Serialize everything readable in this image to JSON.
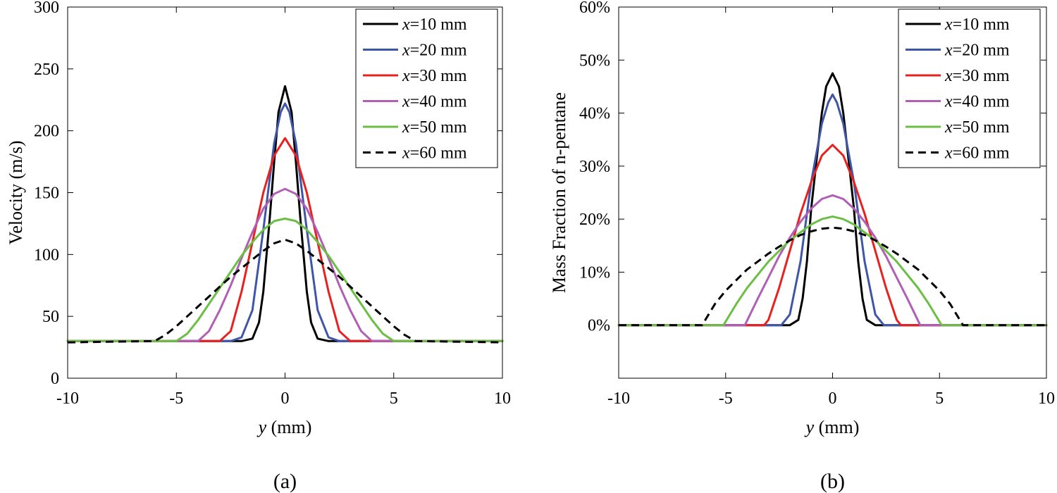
{
  "chart_data": [
    {
      "type": "line",
      "panel": "a",
      "caption": "(a)",
      "xlabel_var": "y",
      "xlabel_unit": " (mm)",
      "ylabel": "Velocity (m/s)",
      "xlim": [
        -10,
        10
      ],
      "ylim": [
        0,
        300
      ],
      "xticks": [
        -10,
        -5,
        0,
        5,
        10
      ],
      "xtick_labels": [
        "-10",
        "-5",
        "0",
        "5",
        "10"
      ],
      "yticks": [
        0,
        50,
        100,
        150,
        200,
        250,
        300
      ],
      "ytick_labels": [
        "0",
        "50",
        "100",
        "150",
        "200",
        "250",
        "300"
      ],
      "legend_position": "top-right",
      "series": [
        {
          "var": "x",
          "label": "=10 mm",
          "color": "#000000",
          "dash": "solid",
          "x": [
            -10,
            -2,
            -1.5,
            -1.2,
            -1,
            -0.7,
            -0.5,
            -0.3,
            0,
            0.3,
            0.5,
            0.7,
            1,
            1.2,
            1.5,
            2,
            10
          ],
          "y": [
            30,
            30,
            32,
            45,
            70,
            130,
            175,
            215,
            236,
            215,
            175,
            130,
            70,
            45,
            32,
            30,
            30
          ]
        },
        {
          "var": "x",
          "label": "=20 mm",
          "color": "#3f56a8",
          "dash": "solid",
          "x": [
            -10,
            -2.5,
            -2,
            -1.5,
            -1,
            -0.5,
            -0.2,
            0,
            0.2,
            0.5,
            1,
            1.5,
            2,
            2.5,
            10
          ],
          "y": [
            30,
            30,
            33,
            55,
            120,
            190,
            215,
            222,
            215,
            190,
            120,
            55,
            33,
            30,
            30
          ]
        },
        {
          "var": "x",
          "label": "=30 mm",
          "color": "#e8211f",
          "dash": "solid",
          "x": [
            -10,
            -3,
            -2.5,
            -2,
            -1.5,
            -1,
            -0.5,
            0,
            0.5,
            1,
            1.5,
            2,
            2.5,
            3,
            10
          ],
          "y": [
            30,
            30,
            38,
            70,
            110,
            150,
            180,
            194,
            180,
            150,
            110,
            70,
            38,
            30,
            30
          ]
        },
        {
          "var": "x",
          "label": "=40 mm",
          "color": "#b05fb5",
          "dash": "solid",
          "x": [
            -10,
            -4,
            -3.5,
            -3,
            -2.5,
            -2,
            -1.5,
            -1,
            -0.5,
            0,
            0.5,
            1,
            1.5,
            2,
            2.5,
            3,
            3.5,
            4,
            10
          ],
          "y": [
            30,
            30,
            38,
            55,
            75,
            97,
            118,
            137,
            149,
            153,
            149,
            137,
            118,
            97,
            75,
            55,
            38,
            30,
            30
          ]
        },
        {
          "var": "x",
          "label": "=50 mm",
          "color": "#6bbf45",
          "dash": "solid",
          "x": [
            -10,
            -5,
            -4.5,
            -4,
            -3.5,
            -3,
            -2.5,
            -2,
            -1.5,
            -1,
            -0.5,
            0,
            0.5,
            1,
            1.5,
            2,
            2.5,
            3,
            3.5,
            4,
            4.5,
            5,
            10
          ],
          "y": [
            30,
            30,
            36,
            47,
            60,
            73,
            86,
            99,
            110,
            120,
            127,
            129,
            127,
            120,
            110,
            99,
            86,
            73,
            60,
            47,
            36,
            30,
            30
          ]
        },
        {
          "var": "x",
          "label": "=60 mm",
          "color": "#000000",
          "dash": "dashed",
          "x": [
            -10,
            -6,
            -5.5,
            -5,
            -4.5,
            -4,
            -3.5,
            -3,
            -2.5,
            -2,
            -1.5,
            -1,
            -0.5,
            0,
            0.5,
            1,
            1.5,
            2,
            2.5,
            3,
            3.5,
            4,
            4.5,
            5,
            5.5,
            6,
            10
          ],
          "y": [
            29,
            30,
            35,
            42,
            50,
            58,
            66,
            74,
            82,
            89,
            96,
            103,
            109,
            112,
            109,
            103,
            96,
            89,
            82,
            74,
            66,
            58,
            50,
            42,
            35,
            30,
            29
          ]
        }
      ]
    },
    {
      "type": "line",
      "panel": "b",
      "caption": "(b)",
      "xlabel_var": "y",
      "xlabel_unit": " (mm)",
      "ylabel": "Mass Fraction of n-pentane",
      "xlim": [
        -10,
        10
      ],
      "ylim": [
        -10,
        60
      ],
      "xticks": [
        -10,
        -5,
        0,
        5,
        10
      ],
      "xtick_labels": [
        "-10",
        "-5",
        "0",
        "5",
        "10"
      ],
      "yticks": [
        0,
        10,
        20,
        30,
        40,
        50,
        60
      ],
      "ytick_labels": [
        "0%",
        "10%",
        "20%",
        "30%",
        "40%",
        "50%",
        "60%"
      ],
      "legend_position": "top-right",
      "series": [
        {
          "var": "x",
          "label": "=10 mm",
          "color": "#000000",
          "dash": "solid",
          "x": [
            -10,
            -2,
            -1.6,
            -1.4,
            -1.2,
            -1,
            -0.7,
            -0.5,
            -0.3,
            0,
            0.3,
            0.5,
            0.7,
            1,
            1.2,
            1.4,
            1.6,
            2,
            10
          ],
          "y": [
            0,
            0,
            1,
            5,
            12,
            22,
            33,
            40,
            45,
            47.5,
            45,
            40,
            33,
            22,
            12,
            5,
            1,
            0,
            0
          ]
        },
        {
          "var": "x",
          "label": "=20 mm",
          "color": "#3f56a8",
          "dash": "solid",
          "x": [
            -10,
            -2.4,
            -2,
            -1.5,
            -1,
            -0.5,
            -0.2,
            0,
            0.2,
            0.5,
            1,
            1.5,
            2,
            2.4,
            10
          ],
          "y": [
            0,
            0,
            2,
            12,
            27,
            38,
            42,
            43.5,
            42,
            38,
            27,
            12,
            2,
            0,
            0
          ]
        },
        {
          "var": "x",
          "label": "=30 mm",
          "color": "#e8211f",
          "dash": "solid",
          "x": [
            -10,
            -3.2,
            -3,
            -2.5,
            -2,
            -1.5,
            -1,
            -0.5,
            0,
            0.5,
            1,
            1.5,
            2,
            2.5,
            3,
            3.2,
            10
          ],
          "y": [
            0,
            0,
            1,
            7,
            14,
            21,
            27,
            32,
            34,
            32,
            27,
            21,
            14,
            7,
            1,
            0,
            0
          ]
        },
        {
          "var": "x",
          "label": "=40 mm",
          "color": "#b05fb5",
          "dash": "solid",
          "x": [
            -10,
            -4.1,
            -3.5,
            -3,
            -2.5,
            -2,
            -1.5,
            -1,
            -0.5,
            0,
            0.5,
            1,
            1.5,
            2,
            2.5,
            3,
            3.5,
            4.1,
            10
          ],
          "y": [
            0,
            0,
            5,
            9,
            13,
            16.5,
            19.5,
            22,
            23.8,
            24.5,
            23.8,
            22,
            19.5,
            16.5,
            13,
            9,
            5,
            0,
            0
          ]
        },
        {
          "var": "x",
          "label": "=50 mm",
          "color": "#6bbf45",
          "dash": "solid",
          "x": [
            -10,
            -5.1,
            -4.5,
            -4,
            -3.5,
            -3,
            -2.5,
            -2,
            -1.5,
            -1,
            -0.5,
            0,
            0.5,
            1,
            1.5,
            2,
            2.5,
            3,
            3.5,
            4,
            4.5,
            5.1,
            10
          ],
          "y": [
            0,
            0,
            4,
            7,
            9.5,
            12,
            14,
            16,
            17.5,
            19,
            20,
            20.5,
            20,
            19,
            17.5,
            16,
            14,
            12,
            9.5,
            7,
            4,
            0,
            0
          ]
        },
        {
          "var": "x",
          "label": "=60 mm",
          "color": "#000000",
          "dash": "dashed",
          "x": [
            -10,
            -6.1,
            -5.5,
            -5,
            -4.5,
            -4,
            -3.5,
            -3,
            -2.5,
            -2,
            -1.5,
            -1,
            -0.5,
            0,
            0.5,
            1,
            1.5,
            2,
            2.5,
            3,
            3.5,
            4,
            4.5,
            5,
            5.5,
            6.1,
            10
          ],
          "y": [
            0,
            0,
            4,
            6.5,
            8.5,
            10.5,
            12,
            13.5,
            14.8,
            16,
            17,
            17.7,
            18.2,
            18.4,
            18.2,
            17.7,
            17,
            16,
            14.8,
            13.5,
            12,
            10.5,
            8.5,
            6.5,
            4,
            0,
            0
          ]
        }
      ]
    }
  ]
}
